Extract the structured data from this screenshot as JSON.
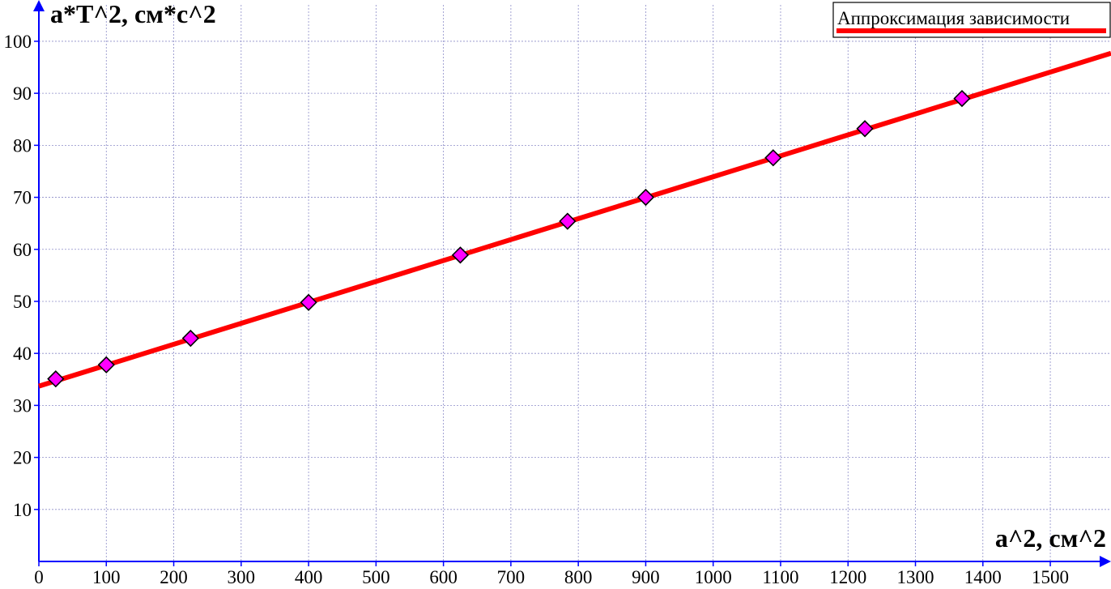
{
  "chart_data": {
    "type": "scatter",
    "ylabel": "a*T^2, см*с^2",
    "xlabel": "a^2, см^2",
    "xlim": [
      0,
      1590
    ],
    "ylim": [
      0,
      107
    ],
    "x_ticks": [
      0,
      100,
      200,
      300,
      400,
      500,
      600,
      700,
      800,
      900,
      1000,
      1100,
      1200,
      1300,
      1400,
      1500
    ],
    "y_ticks": [
      10,
      20,
      30,
      40,
      50,
      60,
      70,
      80,
      90,
      100
    ],
    "grid": true,
    "legend_position": "top-right",
    "series": [
      {
        "kind": "points",
        "marker": "diamond",
        "color": "#ff00ff",
        "x": [
          25,
          100,
          225,
          400,
          625,
          784,
          900,
          1089,
          1225,
          1369
        ],
        "y": [
          35.1,
          37.8,
          42.9,
          49.8,
          58.9,
          65.4,
          70.0,
          77.6,
          83.2,
          89.0
        ]
      },
      {
        "kind": "line",
        "name": "Аппроксимация зависимости",
        "color": "#ff0000",
        "x": [
          0,
          1590
        ],
        "y": [
          33.7,
          97.7
        ]
      }
    ]
  }
}
